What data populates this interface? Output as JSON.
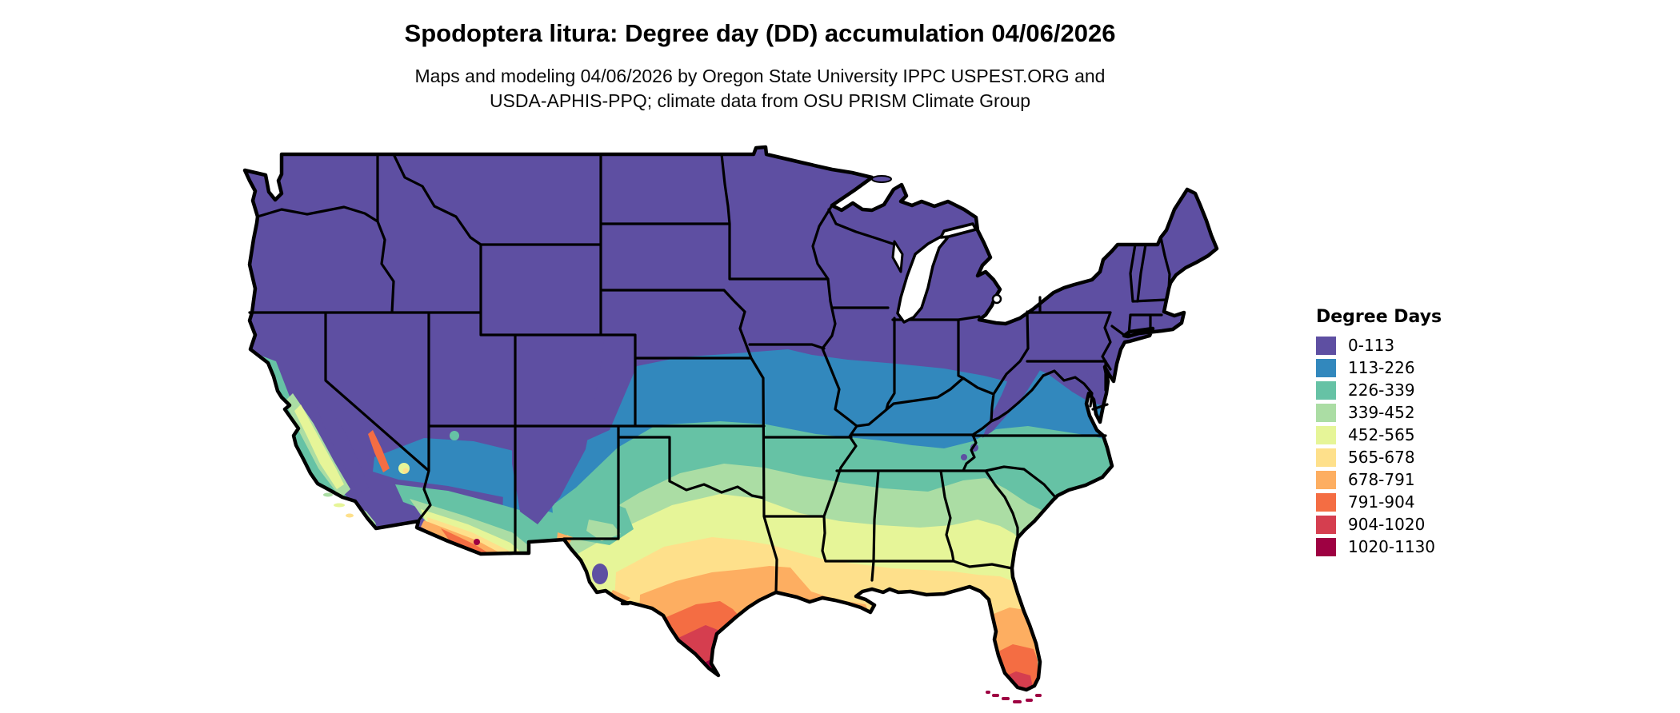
{
  "header": {
    "title": "Spodoptera litura: Degree day (DD) accumulation 04/06/2026",
    "subtitle_line1": "Maps and modeling 04/06/2026 by Oregon State University IPPC USPEST.ORG and",
    "subtitle_line2": "USDA-APHIS-PPQ; climate data from OSU PRISM Climate Group"
  },
  "legend": {
    "title": "Degree Days",
    "bins": [
      {
        "label": "0-113",
        "color": "#5e4fa2"
      },
      {
        "label": "113-226",
        "color": "#3288bd"
      },
      {
        "label": "226-339",
        "color": "#66c2a5"
      },
      {
        "label": "339-452",
        "color": "#abdda4"
      },
      {
        "label": "452-565",
        "color": "#e6f598"
      },
      {
        "label": "565-678",
        "color": "#fee08b"
      },
      {
        "label": "678-791",
        "color": "#fdae61"
      },
      {
        "label": "791-904",
        "color": "#f46d43"
      },
      {
        "label": "904-1020",
        "color": "#d53e4f"
      },
      {
        "label": "1020-1130",
        "color": "#9e0142"
      }
    ]
  },
  "map": {
    "region": "Continental United States",
    "variable": "Degree day (DD) accumulation",
    "date": "04/06/2026",
    "state_border_color": "#000000",
    "water_color": "#ffffff"
  }
}
